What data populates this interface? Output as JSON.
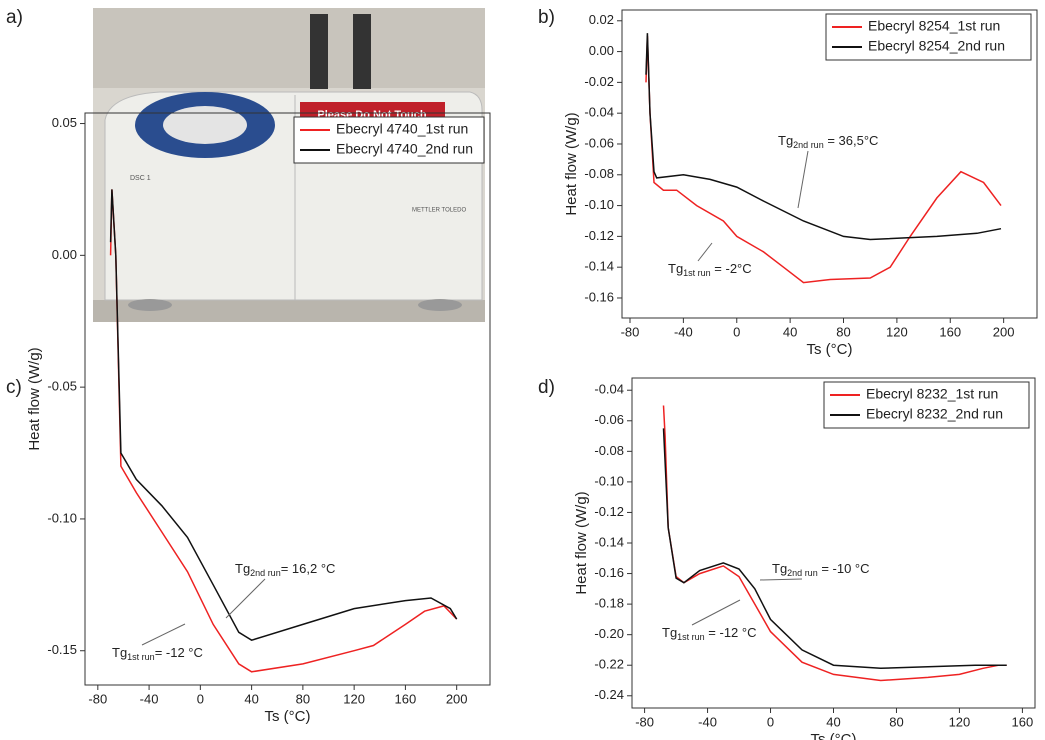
{
  "photo": {
    "panel_label": "a)",
    "sign": "Please Do Not Touch",
    "model": "DSC 1",
    "brand": "METTLER TOLEDO"
  },
  "chart_data": [
    {
      "type": "line",
      "panel_label": "b)",
      "x_label": "Ts (°C)",
      "y_label": "Heat flow (W/g)",
      "xlim": [
        -86,
        225
      ],
      "xticks": [
        -80,
        -40,
        0,
        40,
        80,
        120,
        160,
        200
      ],
      "ylim": [
        -0.173,
        0.027
      ],
      "yticks": [
        {
          "value": 0.02,
          "label": "0.02"
        },
        {
          "value": 0,
          "label": "0.00"
        },
        {
          "value": -0.02,
          "label": "-0.02"
        },
        {
          "value": -0.04,
          "label": "-0.04"
        },
        {
          "value": -0.06,
          "label": "-0.06"
        },
        {
          "value": -0.08,
          "label": "-0.08"
        },
        {
          "value": -0.1,
          "label": "-0.10"
        },
        {
          "value": -0.12,
          "label": "-0.12"
        },
        {
          "value": -0.14,
          "label": "-0.14"
        },
        {
          "value": -0.16,
          "label": "-0.16"
        }
      ],
      "legend": "top-right",
      "series": [
        {
          "name": "Ebecryl 8254_1st run",
          "color": "#ee2222",
          "x": [
            -68,
            -67,
            -65,
            -62,
            -55,
            -45,
            -30,
            -10,
            0,
            20,
            35,
            50,
            70,
            100,
            115,
            130,
            150,
            168,
            185,
            198
          ],
          "values": [
            -0.02,
            0.01,
            -0.04,
            -0.085,
            -0.09,
            -0.09,
            -0.1,
            -0.11,
            -0.12,
            -0.13,
            -0.14,
            -0.15,
            -0.148,
            -0.147,
            -0.14,
            -0.12,
            -0.095,
            -0.078,
            -0.085,
            -0.1
          ]
        },
        {
          "name": "Ebecryl 8254_2nd run",
          "color": "#111111",
          "x": [
            -68,
            -67,
            -65,
            -62,
            -60,
            -40,
            -20,
            0,
            20,
            50,
            80,
            100,
            150,
            180,
            198
          ],
          "values": [
            -0.015,
            0.012,
            -0.04,
            -0.078,
            -0.082,
            -0.08,
            -0.083,
            -0.088,
            -0.097,
            -0.11,
            -0.12,
            -0.122,
            -0.12,
            -0.118,
            -0.115
          ]
        }
      ],
      "annotations": [
        {
          "text": "Tg",
          "sub": "2nd run",
          "rest": " = 36,5°C"
        },
        {
          "text": "Tg",
          "sub": "1st run",
          "rest": " = -2°C"
        }
      ]
    },
    {
      "type": "line",
      "panel_label": "c)",
      "x_label": "Ts (°C)",
      "y_label": "Heat flow (W/g)",
      "xlim": [
        -90,
        226
      ],
      "xticks": [
        -80,
        -40,
        0,
        40,
        80,
        120,
        160,
        200
      ],
      "ylim": [
        -0.163,
        0.054
      ],
      "yticks": [
        {
          "value": 0.05,
          "label": "0.05"
        },
        {
          "value": 0,
          "label": "0.00"
        },
        {
          "value": -0.05,
          "label": "-0.05"
        },
        {
          "value": -0.1,
          "label": "-0.10"
        },
        {
          "value": -0.15,
          "label": "-0.15"
        }
      ],
      "legend": "top-right",
      "series": [
        {
          "name": "Ebecryl 4740_1st run",
          "color": "#ee2222",
          "x": [
            -70,
            -69,
            -66,
            -62,
            -50,
            -30,
            -10,
            10,
            30,
            40,
            80,
            120,
            135,
            160,
            175,
            190,
            200
          ],
          "values": [
            0,
            0.025,
            0,
            -0.08,
            -0.09,
            -0.105,
            -0.12,
            -0.14,
            -0.155,
            -0.158,
            -0.155,
            -0.15,
            -0.148,
            -0.14,
            -0.135,
            -0.133,
            -0.138
          ]
        },
        {
          "name": "Ebecryl 4740_2nd run",
          "color": "#111111",
          "x": [
            -70,
            -69,
            -66,
            -62,
            -50,
            -30,
            -10,
            10,
            30,
            40,
            80,
            120,
            160,
            180,
            195,
            200
          ],
          "values": [
            0.005,
            0.025,
            0,
            -0.075,
            -0.085,
            -0.095,
            -0.107,
            -0.125,
            -0.143,
            -0.146,
            -0.14,
            -0.134,
            -0.131,
            -0.13,
            -0.134,
            -0.138
          ]
        }
      ],
      "annotations": [
        {
          "text": "Tg",
          "sub": "2nd run",
          "rest": "= 16,2 °C"
        },
        {
          "text": "Tg",
          "sub": "1st run",
          "rest": "= -12 °C"
        }
      ]
    },
    {
      "type": "line",
      "panel_label": "d)",
      "x_label": "Ts (°C)",
      "y_label": "Heat flow (W/g)",
      "xlim": [
        -88,
        168
      ],
      "xticks": [
        -80,
        -40,
        0,
        40,
        80,
        120,
        160
      ],
      "ylim": [
        -0.248,
        -0.032
      ],
      "yticks": [
        {
          "value": -0.04,
          "label": "-0.04"
        },
        {
          "value": -0.06,
          "label": "-0.06"
        },
        {
          "value": -0.08,
          "label": "-0.08"
        },
        {
          "value": -0.1,
          "label": "-0.10"
        },
        {
          "value": -0.12,
          "label": "-0.12"
        },
        {
          "value": -0.14,
          "label": "-0.14"
        },
        {
          "value": -0.16,
          "label": "-0.16"
        },
        {
          "value": -0.18,
          "label": "-0.18"
        },
        {
          "value": -0.2,
          "label": "-0.20"
        },
        {
          "value": -0.22,
          "label": "-0.22"
        },
        {
          "value": -0.24,
          "label": "-0.24"
        }
      ],
      "legend": "top-right",
      "series": [
        {
          "name": "Ebecryl 8232_1st run",
          "color": "#ee2222",
          "x": [
            -68,
            -67,
            -65,
            -60,
            -55,
            -45,
            -30,
            -20,
            -10,
            0,
            20,
            40,
            70,
            100,
            120,
            135,
            145,
            150
          ],
          "values": [
            -0.05,
            -0.07,
            -0.13,
            -0.162,
            -0.166,
            -0.16,
            -0.155,
            -0.162,
            -0.18,
            -0.198,
            -0.218,
            -0.226,
            -0.23,
            -0.228,
            -0.226,
            -0.222,
            -0.22,
            -0.22
          ]
        },
        {
          "name": "Ebecryl 8232_2nd run",
          "color": "#111111",
          "x": [
            -68,
            -65,
            -60,
            -55,
            -45,
            -30,
            -20,
            -10,
            0,
            20,
            40,
            70,
            100,
            130,
            150
          ],
          "values": [
            -0.065,
            -0.13,
            -0.163,
            -0.166,
            -0.158,
            -0.153,
            -0.157,
            -0.17,
            -0.19,
            -0.21,
            -0.22,
            -0.222,
            -0.221,
            -0.22,
            -0.22
          ]
        }
      ],
      "annotations": [
        {
          "text": "Tg",
          "sub": "2nd run",
          "rest": " = -10 °C"
        },
        {
          "text": "Tg",
          "sub": "1st run",
          "rest": " = -12 °C"
        }
      ]
    }
  ]
}
